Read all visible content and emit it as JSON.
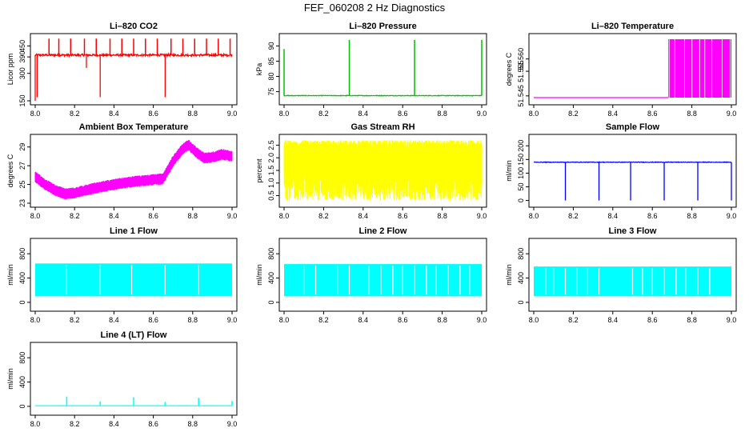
{
  "figure_title": "FEF_060208  2 Hz Diagnostics",
  "chart_data": [
    {
      "id": "co2",
      "type": "line",
      "title": "Li–820 CO2",
      "ylabel": "Licor ppm",
      "xlim": [
        8.0,
        9.0
      ],
      "ylim": [
        150,
        500
      ],
      "xticks": [
        8.0,
        8.2,
        8.4,
        8.6,
        8.8,
        9.0
      ],
      "xtick_labels": [
        "8.0",
        "8.2",
        "8.4",
        "8.6",
        "8.8",
        "9.0"
      ],
      "yticks": [
        150,
        300,
        390,
        450
      ],
      "ytick_labels": [
        "150",
        "300",
        "390",
        "450"
      ],
      "color": "#ff0000",
      "pattern": "baseline_spikes",
      "baseline": 400,
      "noise": 12,
      "spikes_up": [
        8.07,
        8.12,
        8.18,
        8.25,
        8.31,
        8.38,
        8.44,
        8.5,
        8.56,
        8.62,
        8.69,
        8.75,
        8.81,
        8.87,
        8.93,
        8.99
      ],
      "spike_up_value": 490,
      "spikes_down": [
        [
          8.0,
          150
        ],
        [
          8.01,
          170
        ],
        [
          8.33,
          170
        ],
        [
          8.66,
          170
        ],
        [
          8.26,
          330
        ]
      ],
      "series": [
        {
          "values": []
        }
      ]
    },
    {
      "id": "pressure",
      "type": "line",
      "title": "Li–820 Pressure",
      "ylabel": "kPa",
      "xlim": [
        8.0,
        9.0
      ],
      "ylim": [
        72,
        93
      ],
      "xticks": [
        8.0,
        8.2,
        8.4,
        8.6,
        8.8,
        9.0
      ],
      "xtick_labels": [
        "8.0",
        "8.2",
        "8.4",
        "8.6",
        "8.8",
        "9.0"
      ],
      "yticks": [
        75,
        80,
        85,
        90
      ],
      "ytick_labels": [
        "75",
        "80",
        "85",
        "90"
      ],
      "color": "#00c000",
      "pattern": "baseline_spikes",
      "baseline": 73.7,
      "noise": 0.2,
      "spikes_up": [
        8.0,
        8.33,
        8.66,
        9.0
      ],
      "spike_up_values": [
        89,
        92,
        92,
        92
      ],
      "spikes_down": [],
      "series": [
        {
          "values": []
        }
      ]
    },
    {
      "id": "temperature",
      "type": "line",
      "title": "Li–820 Temperature",
      "ylabel": "degrees C",
      "xlim": [
        8.0,
        9.0
      ],
      "ylim": [
        51.543,
        51.569
      ],
      "xticks": [
        8.0,
        8.2,
        8.4,
        8.6,
        8.8,
        9.0
      ],
      "xtick_labels": [
        "8.0",
        "8.2",
        "8.4",
        "8.6",
        "8.8",
        "9.0"
      ],
      "yticks": [
        51.545,
        51.555,
        51.56
      ],
      "ytick_labels": [
        "51.545",
        "51.555",
        "51.560"
      ],
      "color": "#ff00ff",
      "pattern": "step_toggle",
      "low": 51.5443,
      "high": 51.568,
      "switch_at": 8.68,
      "series": [
        {
          "values": []
        }
      ]
    },
    {
      "id": "ambient",
      "type": "line",
      "title": "Ambient Box Temperature",
      "ylabel": "degrees C",
      "xlim": [
        8.0,
        9.0
      ],
      "ylim": [
        23,
        30
      ],
      "xticks": [
        8.0,
        8.2,
        8.4,
        8.6,
        8.8,
        9.0
      ],
      "xtick_labels": [
        "8.0",
        "8.2",
        "8.4",
        "8.6",
        "8.8",
        "9.0"
      ],
      "yticks": [
        23,
        25,
        27,
        29
      ],
      "ytick_labels": [
        "23",
        "25",
        "27",
        "29"
      ],
      "color": "#ff00ff",
      "pattern": "band_curve",
      "curve_x": [
        8.0,
        8.05,
        8.1,
        8.15,
        8.2,
        8.3,
        8.4,
        8.5,
        8.6,
        8.65,
        8.7,
        8.75,
        8.78,
        8.82,
        8.86,
        8.9,
        8.95,
        9.0
      ],
      "curve_y": [
        25.8,
        25.0,
        24.4,
        24.0,
        24.1,
        24.6,
        25.0,
        25.3,
        25.5,
        25.6,
        27.5,
        28.8,
        29.2,
        28.4,
        27.8,
        27.9,
        28.2,
        28.0
      ],
      "band_width": 1.2,
      "series": [
        {
          "values": []
        }
      ]
    },
    {
      "id": "rh",
      "type": "line",
      "title": "Gas Stream RH",
      "ylabel": "percent",
      "xlim": [
        8.0,
        9.0
      ],
      "ylim": [
        0.2,
        2.8
      ],
      "xticks": [
        8.0,
        8.2,
        8.4,
        8.6,
        8.8,
        9.0
      ],
      "xtick_labels": [
        "8.0",
        "8.2",
        "8.4",
        "8.6",
        "8.8",
        "9.0"
      ],
      "yticks": [
        0.5,
        1.0,
        1.5,
        2.0,
        2.5
      ],
      "ytick_labels": [
        "0.5",
        "1.0",
        "1.5",
        "2.0",
        "2.5"
      ],
      "color": "#ffff00",
      "pattern": "dense_oscillation",
      "range": [
        0.3,
        2.7
      ],
      "series": [
        {
          "values": []
        }
      ]
    },
    {
      "id": "sample",
      "type": "line",
      "title": "Sample Flow",
      "ylabel": "ml/min",
      "xlim": [
        8.0,
        9.0
      ],
      "ylim": [
        -10,
        230
      ],
      "xticks": [
        8.0,
        8.2,
        8.4,
        8.6,
        8.8,
        9.0
      ],
      "xtick_labels": [
        "8.0",
        "8.2",
        "8.4",
        "8.6",
        "8.8",
        "9.0"
      ],
      "yticks": [
        0,
        50,
        100,
        150,
        200
      ],
      "ytick_labels": [
        "0",
        "50",
        "100",
        "150",
        "200"
      ],
      "color": "#0000ff",
      "pattern": "baseline_spikes",
      "baseline": 140,
      "noise": 2,
      "spikes_up": [],
      "spikes_down": [
        [
          8.16,
          0
        ],
        [
          8.33,
          0
        ],
        [
          8.49,
          0
        ],
        [
          8.66,
          0
        ],
        [
          8.83,
          0
        ],
        [
          9.0,
          0
        ]
      ],
      "series": [
        {
          "values": []
        }
      ]
    },
    {
      "id": "line1",
      "type": "line",
      "title": "Line 1 Flow",
      "ylabel": "ml/min",
      "xlim": [
        8.0,
        9.0
      ],
      "ylim": [
        -80,
        1000
      ],
      "xticks": [
        8.0,
        8.2,
        8.4,
        8.6,
        8.8,
        9.0
      ],
      "xtick_labels": [
        "8.0",
        "8.2",
        "8.4",
        "8.6",
        "8.8",
        "9.0"
      ],
      "yticks": [
        0,
        400,
        800
      ],
      "ytick_labels": [
        "0",
        "400",
        "800"
      ],
      "color": "#00ffff",
      "pattern": "block",
      "range": [
        100,
        640
      ],
      "gaps": [
        8.16,
        8.33,
        8.49,
        8.66,
        8.83
      ],
      "series": [
        {
          "values": []
        }
      ]
    },
    {
      "id": "line2",
      "type": "line",
      "title": "Line 2 Flow",
      "ylabel": "ml/min",
      "xlim": [
        8.0,
        9.0
      ],
      "ylim": [
        -80,
        1000
      ],
      "xticks": [
        8.0,
        8.2,
        8.4,
        8.6,
        8.8,
        9.0
      ],
      "xtick_labels": [
        "8.0",
        "8.2",
        "8.4",
        "8.6",
        "8.8",
        "9.0"
      ],
      "yticks": [
        0,
        400,
        800
      ],
      "ytick_labels": [
        "0",
        "400",
        "800"
      ],
      "color": "#00ffff",
      "pattern": "block",
      "range": [
        100,
        630
      ],
      "gaps": [
        8.1,
        8.16,
        8.27,
        8.33,
        8.43,
        8.49,
        8.55,
        8.6,
        8.66,
        8.72,
        8.77,
        8.83,
        8.89,
        8.94
      ],
      "series": [
        {
          "values": []
        }
      ]
    },
    {
      "id": "line3",
      "type": "line",
      "title": "Line 3 Flow",
      "ylabel": "ml/min",
      "xlim": [
        8.0,
        9.0
      ],
      "ylim": [
        -80,
        1000
      ],
      "xticks": [
        8.0,
        8.2,
        8.4,
        8.6,
        8.8,
        9.0
      ],
      "xtick_labels": [
        "8.0",
        "8.2",
        "8.4",
        "8.6",
        "8.8",
        "9.0"
      ],
      "yticks": [
        0,
        400,
        800
      ],
      "ytick_labels": [
        "0",
        "400",
        "800"
      ],
      "color": "#00ffff",
      "pattern": "block",
      "range": [
        100,
        590
      ],
      "gaps": [
        8.06,
        8.1,
        8.16,
        8.22,
        8.27,
        8.33,
        8.5,
        8.55,
        8.6,
        8.66,
        8.72,
        8.77,
        8.83,
        8.89
      ],
      "series": [
        {
          "values": []
        }
      ]
    },
    {
      "id": "line4",
      "type": "line",
      "title": "Line 4 (LT) Flow",
      "ylabel": "ml/min",
      "xlim": [
        8.0,
        9.0
      ],
      "ylim": [
        -80,
        1000
      ],
      "xticks": [
        8.0,
        8.2,
        8.4,
        8.6,
        8.8,
        9.0
      ],
      "xtick_labels": [
        "8.0",
        "8.2",
        "8.4",
        "8.6",
        "8.8",
        "9.0"
      ],
      "yticks": [
        0,
        400,
        800
      ],
      "ytick_labels": [
        "0",
        "400",
        "800"
      ],
      "color": "#00ffff",
      "pattern": "baseline_spikes",
      "baseline": 10,
      "noise": 2,
      "spikes_up": [
        8.16,
        8.33,
        8.5,
        8.66,
        8.83,
        9.0
      ],
      "spike_up_values": [
        160,
        80,
        150,
        70,
        140,
        90
      ],
      "spikes_down": [],
      "series": [
        {
          "values": []
        }
      ]
    }
  ]
}
